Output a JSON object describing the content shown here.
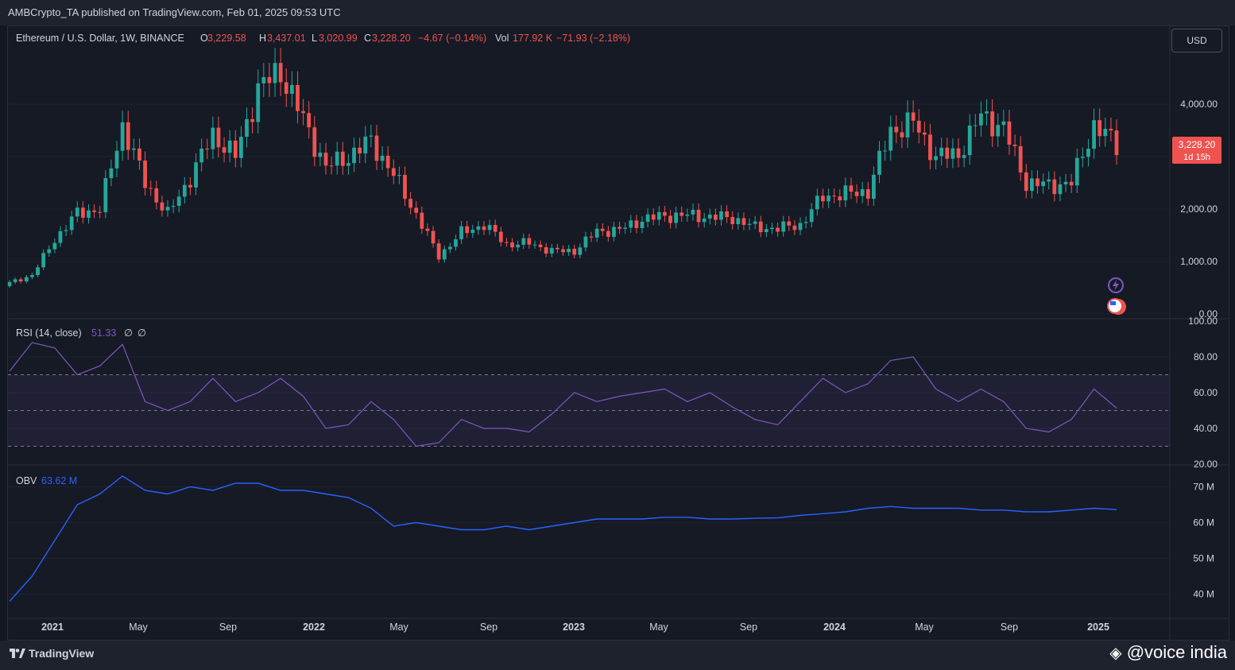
{
  "header": {
    "published": "AMBCrypto_TA published on TradingView.com, Feb 01, 2025 09:53 UTC"
  },
  "legend": {
    "symbol": "Ethereum / U.S. Dollar, 1W, BINANCE",
    "o_label": "O",
    "o": "3,229.58",
    "h_label": "H",
    "h": "3,437.01",
    "l_label": "L",
    "l": "3,020.99",
    "c_label": "C",
    "c": "3,228.20",
    "change": "−4.67 (−0.14%)",
    "vol_label": "Vol",
    "vol": "177.92 K",
    "vol_change": "−71.93 (−2.18%)"
  },
  "currency_button": "USD",
  "price_tag": {
    "price": "3,228.20",
    "countdown": "1d 15h"
  },
  "rsi_legend": {
    "label": "RSI (14, close)",
    "value": "51.33",
    "extra1": "∅",
    "extra2": "∅"
  },
  "obv_legend": {
    "label": "OBV",
    "value": "63.62 M"
  },
  "footer": {
    "brand": "TradingView",
    "watermark": "@voice india"
  },
  "colors": {
    "up": "#26a69a",
    "down": "#ef5350",
    "rsi": "#7e57c2",
    "obv": "#2962ff",
    "bg": "#161a25"
  },
  "chart_data": [
    {
      "type": "candlestick",
      "title": "Ethereum / U.S. Dollar, 1W, BINANCE",
      "x_ticks": [
        "2021",
        "May",
        "Sep",
        "2022",
        "May",
        "Sep",
        "2023",
        "May",
        "Sep",
        "2024",
        "May",
        "Sep",
        "2025"
      ],
      "y_ticks": [
        "4,000.00",
        "3,000.00",
        "2,000.00",
        "1,000.00",
        "0.00"
      ],
      "ylim": [
        0,
        5000
      ],
      "x": [
        "2020-12",
        "2021-01",
        "2021-02",
        "2021-03",
        "2021-04",
        "2021-05",
        "2021-06",
        "2021-07",
        "2021-08",
        "2021-09",
        "2021-10",
        "2021-11",
        "2021-12",
        "2022-01",
        "2022-02",
        "2022-03",
        "2022-04",
        "2022-05",
        "2022-06",
        "2022-07",
        "2022-08",
        "2022-09",
        "2022-10",
        "2022-11",
        "2022-12",
        "2023-01",
        "2023-02",
        "2023-03",
        "2023-04",
        "2023-05",
        "2023-06",
        "2023-07",
        "2023-08",
        "2023-09",
        "2023-10",
        "2023-11",
        "2023-12",
        "2024-01",
        "2024-02",
        "2024-03",
        "2024-04",
        "2024-05",
        "2024-06",
        "2024-07",
        "2024-08",
        "2024-09",
        "2024-10",
        "2024-11",
        "2024-12",
        "2025-01"
      ],
      "close": [
        590,
        740,
        1420,
        1920,
        2000,
        3600,
        2500,
        1900,
        2600,
        3430,
        3000,
        4300,
        4630,
        3700,
        2800,
        3000,
        3300,
        2650,
        1900,
        1100,
        1550,
        1700,
        1330,
        1350,
        1200,
        1200,
        1580,
        1600,
        1800,
        1870,
        1880,
        1850,
        1830,
        1650,
        1630,
        1700,
        2240,
        2290,
        2340,
        3500,
        3650,
        3000,
        3050,
        3780,
        3550,
        2500,
        2450,
        2500,
        3600,
        3228
      ],
      "open_close_note": "weekly candles summarized monthly (close values)"
    },
    {
      "type": "line",
      "title": "RSI (14, close)",
      "y_ticks": [
        "100.00",
        "80.00",
        "60.00",
        "40.00",
        "20.00"
      ],
      "ylim": [
        20,
        100
      ],
      "bands": [
        30,
        50,
        70
      ],
      "values": [
        72,
        88,
        85,
        70,
        75,
        87,
        55,
        50,
        55,
        68,
        55,
        60,
        68,
        58,
        40,
        42,
        55,
        45,
        30,
        32,
        45,
        40,
        40,
        38,
        48,
        60,
        55,
        58,
        60,
        62,
        55,
        60,
        52,
        45,
        42,
        55,
        68,
        60,
        65,
        78,
        80,
        62,
        55,
        62,
        55,
        40,
        38,
        45,
        62,
        51.33
      ]
    },
    {
      "type": "line",
      "title": "OBV",
      "y_ticks": [
        "70 M",
        "60 M",
        "50 M",
        "40 M"
      ],
      "ylim": [
        35,
        75
      ],
      "values": [
        38,
        45,
        55,
        65,
        68,
        73,
        69,
        68,
        70,
        69,
        71,
        71,
        69,
        69,
        68,
        67,
        64,
        59,
        60,
        59,
        58,
        58,
        59,
        58,
        59,
        60,
        61,
        61,
        61,
        61.5,
        61.5,
        61,
        61,
        61.2,
        61.3,
        62,
        62.5,
        63,
        64,
        64.5,
        64,
        64,
        64,
        63.5,
        63.5,
        63,
        63,
        63.5,
        64,
        63.62
      ]
    }
  ]
}
